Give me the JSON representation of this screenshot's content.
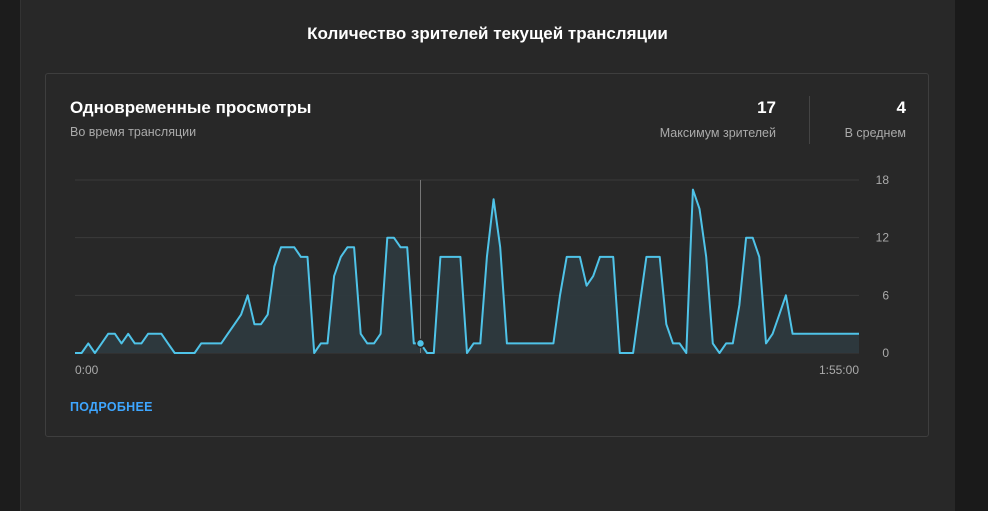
{
  "page": {
    "title": "Количество зрителей текущей трансляции"
  },
  "card": {
    "title": "Одновременные просмотры",
    "subtitle": "Во время трансляции",
    "stats": {
      "max_value": "17",
      "max_label": "Максимум зрителей",
      "avg_value": "4",
      "avg_label": "В среднем"
    },
    "more_link": "ПОДРОБНЕЕ"
  },
  "colors": {
    "line": "#4fc3e8",
    "fill": "#2e3a3f",
    "grid": "#3a3a3a",
    "link": "#3ea6ff"
  },
  "chart_data": {
    "type": "area",
    "title": "Одновременные просмотры",
    "xlabel": "",
    "ylabel": "",
    "x_tick_labels": [
      "0:00",
      "1:55:00"
    ],
    "y_ticks": [
      0,
      6,
      12,
      18
    ],
    "y_tick_labels": [
      "0",
      "6",
      "12",
      "18"
    ],
    "ylim": [
      0,
      18
    ],
    "grid": true,
    "highlight_index": 52,
    "values": [
      0,
      0,
      1,
      0,
      1,
      2,
      2,
      1,
      2,
      1,
      1,
      2,
      2,
      2,
      1,
      0,
      0,
      0,
      0,
      1,
      1,
      1,
      1,
      2,
      3,
      4,
      6,
      3,
      3,
      4,
      9,
      11,
      11,
      11,
      10,
      10,
      0,
      1,
      1,
      8,
      10,
      11,
      11,
      2,
      1,
      1,
      2,
      12,
      12,
      11,
      11,
      1,
      1,
      0,
      0,
      10,
      10,
      10,
      10,
      0,
      1,
      1,
      10,
      16,
      11,
      1,
      1,
      1,
      1,
      1,
      1,
      1,
      1,
      6,
      10,
      10,
      10,
      7,
      8,
      10,
      10,
      10,
      0,
      0,
      0,
      5,
      10,
      10,
      10,
      3,
      1,
      1,
      0,
      17,
      15,
      10,
      1,
      0,
      1,
      1,
      5,
      12,
      12,
      10,
      1,
      2,
      4,
      6,
      2,
      2,
      2,
      2,
      2,
      2,
      2,
      2,
      2,
      2,
      2
    ]
  }
}
